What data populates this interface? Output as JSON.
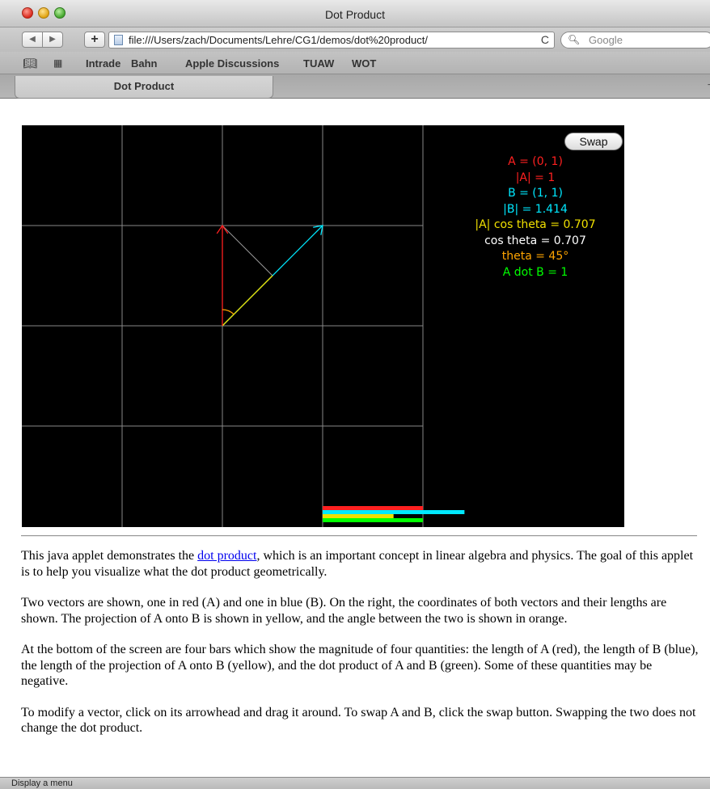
{
  "window": {
    "title": "Dot Product"
  },
  "toolbar": {
    "back_icon": "◀",
    "forward_icon": "▶",
    "add_icon": "+",
    "url": "file:///Users/zach/Documents/Lehre/CG1/demos/dot%20product/",
    "reload_icon": "C",
    "search_placeholder": "Google"
  },
  "bookmarks": {
    "items": [
      "Intrade",
      "Bahn",
      "Apple Discussions",
      "TUAW",
      "WOT"
    ]
  },
  "tab": {
    "label": "Dot Product"
  },
  "applet": {
    "swap_label": "Swap",
    "readouts": [
      {
        "text": "A = (0, 1)",
        "color": "#ff2020"
      },
      {
        "text": "|A| = 1",
        "color": "#ff2020"
      },
      {
        "text": "B = (1, 1)",
        "color": "#00e8ff"
      },
      {
        "text": "|B| = 1.414",
        "color": "#00e8ff"
      },
      {
        "text": "|A| cos theta = 0.707",
        "color": "#f0e000"
      },
      {
        "text": "cos theta = 0.707",
        "color": "#ffffff"
      },
      {
        "text": "theta = 45°",
        "color": "#ffa500"
      },
      {
        "text": "A dot B = 1",
        "color": "#00ff00"
      }
    ],
    "vector_a": [
      0,
      1
    ],
    "vector_b": [
      1,
      1
    ],
    "projection_length": 0.707,
    "theta_degrees": 45,
    "dot_product": 1,
    "colors": {
      "a": "#ff2020",
      "b": "#00e8ff",
      "projection": "#f0e000",
      "angle": "#ffa500",
      "dot": "#00ff00",
      "grid": "#888888",
      "perpendicular": "#999999"
    }
  },
  "description": {
    "p1_before": "This java applet demonstrates the ",
    "p1_link": "dot product",
    "p1_after": ", which is an important concept in linear algebra and physics. The goal of this applet is to help you visualize what the dot product geometrically.",
    "p2": "Two vectors are shown, one in red (A) and one in blue (B). On the right, the coordinates of both vectors and their lengths are shown. The projection of A onto B is shown in yellow, and the angle between the two is shown in orange.",
    "p3": "At the bottom of the screen are four bars which show the magnitude of four quantities: the length of A (red), the length of B (blue), the length of the projection of A onto B (yellow), and the dot product of A and B (green). Some of these quantities may be negative.",
    "p4": "To modify a vector, click on its arrowhead and drag it around. To swap A and B, click the swap button. Swapping the two does not change the dot product."
  },
  "status": {
    "text": "Display a menu"
  }
}
